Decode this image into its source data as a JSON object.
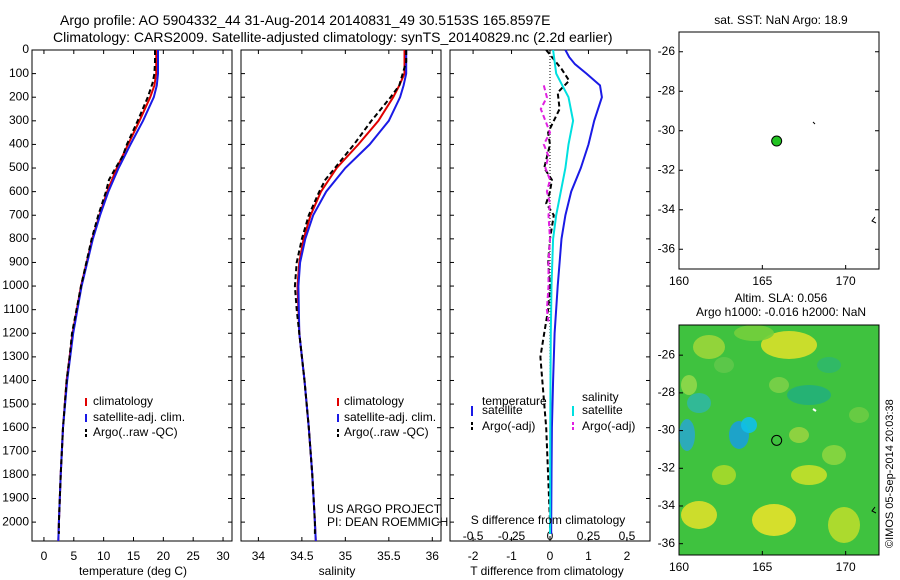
{
  "header": {
    "line1": "Argo profile: AO 5904332_44 31-Aug-2014 20140831_49 30.5153S 165.8597E",
    "line2": "Climatology: CARS2009. Satellite-adjusted climatology: synTS_20140829.nc (2.2d earlier)"
  },
  "sst_title": "sat. SST: NaN Argo: 18.9",
  "sla_title1": "Altim. SLA: 0.056",
  "sla_title2": "Argo h1000: -0.016 h2000: NaN",
  "side_label": "©IMOS 05-Sep-2014 20:03:38",
  "project_line1": "US ARGO PROJECT",
  "project_line2": "PI: DEAN ROEMMICH",
  "colors": {
    "climatology": "#e00000",
    "satellite": "#1a1ae6",
    "argo": "#000000",
    "sat_s": "#00e0e0",
    "argo_s": "#e020e0"
  },
  "chart_data": [
    {
      "type": "line",
      "xlabel": "temperature (deg C)",
      "ylabel": "",
      "xlim": [
        -2,
        31.5
      ],
      "ylim": [
        0,
        2080
      ],
      "xticks": [
        0,
        5,
        10,
        15,
        20,
        25,
        30
      ],
      "yticks": [
        0,
        100,
        200,
        300,
        400,
        500,
        600,
        700,
        800,
        900,
        1000,
        1100,
        1200,
        1300,
        1400,
        1500,
        1600,
        1700,
        1800,
        1900,
        2000
      ],
      "legend": [
        "climatology",
        "satellite-adj. clim.",
        "Argo(..raw -QC)"
      ],
      "legend_position": "lower-left",
      "series": [
        {
          "name": "climatology",
          "depth": [
            0,
            100,
            150,
            200,
            300,
            400,
            500,
            600,
            700,
            800,
            1000,
            1200,
            1400,
            1600,
            1800,
            2000,
            2080
          ],
          "values": [
            18.8,
            18.8,
            18.5,
            17.8,
            16.0,
            14.1,
            12.2,
            10.6,
            9.3,
            8.1,
            6.2,
            4.8,
            3.8,
            3.2,
            2.8,
            2.5,
            2.4
          ]
        },
        {
          "name": "satellite-adj. clim.",
          "depth": [
            0,
            100,
            150,
            200,
            300,
            400,
            500,
            600,
            700,
            800,
            1000,
            1200,
            1400,
            1600,
            1800,
            2000,
            2080
          ],
          "values": [
            19.1,
            19.1,
            18.9,
            18.4,
            16.6,
            14.5,
            12.5,
            10.8,
            9.4,
            8.2,
            6.3,
            4.9,
            3.9,
            3.2,
            2.8,
            2.5,
            2.4
          ]
        },
        {
          "name": "Argo(..raw -QC)",
          "depth": [
            0,
            50,
            100,
            140,
            200,
            300,
            400,
            450,
            500,
            550,
            600,
            700,
            800,
            1000,
            1200,
            1300,
            1400,
            1600,
            1800,
            2000,
            2050
          ],
          "values": [
            18.6,
            18.6,
            18.5,
            18.2,
            17.4,
            15.7,
            13.9,
            13.2,
            12.0,
            10.9,
            10.4,
            9.1,
            8.0,
            6.2,
            4.7,
            4.3,
            3.8,
            3.2,
            2.8,
            2.5,
            2.5
          ]
        }
      ]
    },
    {
      "type": "line",
      "xlabel": "salinity",
      "ylabel": "",
      "xlim": [
        33.8,
        36.1
      ],
      "ylim": [
        0,
        2080
      ],
      "xticks": [
        34,
        34.5,
        35,
        35.5,
        36
      ],
      "legend": [
        "climatology",
        "satellite-adj. clim.",
        "Argo(..raw -QC)"
      ],
      "legend_position": "lower-right",
      "series": [
        {
          "name": "climatology",
          "depth": [
            0,
            100,
            150,
            200,
            300,
            400,
            500,
            600,
            700,
            800,
            900,
            1000,
            1200,
            1400,
            1600,
            1800,
            2000,
            2080
          ],
          "values": [
            35.68,
            35.68,
            35.62,
            35.55,
            35.38,
            35.15,
            34.9,
            34.72,
            34.6,
            34.52,
            34.47,
            34.45,
            34.47,
            34.53,
            34.58,
            34.62,
            34.65,
            34.66
          ]
        },
        {
          "name": "satellite-adj. clim.",
          "depth": [
            0,
            100,
            150,
            200,
            300,
            400,
            500,
            600,
            700,
            800,
            900,
            1000,
            1200,
            1400,
            1600,
            1800,
            2000,
            2080
          ],
          "values": [
            35.7,
            35.7,
            35.67,
            35.63,
            35.5,
            35.28,
            35.0,
            34.78,
            34.63,
            34.54,
            34.48,
            34.46,
            34.47,
            34.53,
            34.58,
            34.62,
            34.65,
            34.66
          ]
        },
        {
          "name": "Argo(..raw -QC)",
          "depth": [
            0,
            50,
            100,
            150,
            200,
            300,
            400,
            500,
            550,
            600,
            700,
            800,
            900,
            1000,
            1100,
            1200,
            1400,
            1600,
            1800,
            2000,
            2050
          ],
          "values": [
            35.7,
            35.7,
            35.66,
            35.62,
            35.52,
            35.3,
            35.1,
            34.88,
            34.77,
            34.7,
            34.58,
            34.5,
            34.44,
            34.42,
            34.44,
            34.47,
            34.53,
            34.58,
            34.62,
            34.65,
            34.65
          ]
        }
      ]
    },
    {
      "type": "line",
      "xlabel": "T difference from climatology",
      "title": "S difference from climatology",
      "xlim": [
        -2.6,
        2.6
      ],
      "ylim": [
        0,
        2080
      ],
      "xticks": [
        -2,
        -1,
        0,
        1,
        2
      ],
      "xticks_S": [
        -0.5,
        -0.25,
        0,
        0.25,
        0.5
      ],
      "legend": [
        "temperature",
        "satellite",
        "Argo(-adj)",
        "salinity",
        "satellite",
        "Argo(-adj)"
      ],
      "series": [
        {
          "name": "satellite",
          "group": "temperature",
          "depth": [
            0,
            30,
            60,
            100,
            150,
            200,
            300,
            400,
            500,
            600,
            700,
            800,
            1000,
            1200,
            1400,
            1600,
            1800,
            2000,
            2050
          ],
          "values": [
            0.4,
            0.5,
            0.65,
            0.95,
            1.3,
            1.35,
            1.15,
            1.0,
            0.8,
            0.55,
            0.4,
            0.3,
            0.2,
            0.12,
            0.08,
            0.05,
            0.04,
            0.03,
            0.03
          ]
        },
        {
          "name": "Argo(-adj)",
          "group": "temperature",
          "depth": [
            0,
            40,
            80,
            130,
            180,
            250,
            300,
            350,
            400,
            500,
            550,
            600,
            650,
            700,
            800,
            900,
            1000,
            1100,
            1200,
            1300,
            1400,
            1600,
            1800,
            2000,
            2050
          ],
          "values": [
            -0.1,
            0.1,
            0.3,
            0.5,
            0.2,
            0.25,
            0.1,
            -0.05,
            0.0,
            -0.15,
            0.05,
            0.0,
            -0.1,
            0.1,
            0.0,
            -0.05,
            0.0,
            -0.05,
            -0.15,
            -0.25,
            -0.2,
            -0.1,
            -0.05,
            0.0,
            0.0
          ]
        },
        {
          "name": "satellite",
          "group": "salinity",
          "depth": [
            0,
            100,
            150,
            200,
            300,
            400,
            500,
            600,
            700,
            800,
            1000,
            1200,
            1400,
            1600,
            1800,
            2000,
            2050
          ],
          "values": [
            0.02,
            0.04,
            0.08,
            0.12,
            0.15,
            0.12,
            0.1,
            0.07,
            0.04,
            0.02,
            0.01,
            0.005,
            0.003,
            0.002,
            0.001,
            0.001,
            0.0
          ]
        },
        {
          "name": "Argo(-adj)",
          "group": "salinity",
          "depth": [
            150,
            200,
            250,
            300,
            350,
            400,
            450,
            500,
            550,
            600,
            650,
            700,
            800,
            900,
            1000,
            1100,
            1150
          ],
          "values": [
            -0.04,
            -0.02,
            -0.06,
            -0.03,
            0.0,
            -0.04,
            -0.01,
            -0.03,
            0.0,
            -0.02,
            0.0,
            -0.01,
            0.0,
            -0.01,
            -0.01,
            -0.02,
            -0.01
          ]
        }
      ]
    },
    {
      "type": "scatter",
      "title": "sat. SST: NaN Argo: 18.9",
      "xlim": [
        160,
        172
      ],
      "ylim": [
        -37,
        -25
      ],
      "xticks": [
        160,
        165,
        170
      ],
      "yticks": [
        -26,
        -28,
        -30,
        -32,
        -34,
        -36
      ],
      "points": [
        {
          "lon": 165.86,
          "lat": -30.52
        }
      ]
    },
    {
      "type": "heatmap",
      "title": "Altim. SLA: 0.056",
      "xlim": [
        160,
        172
      ],
      "ylim": [
        -36.6,
        -24.4
      ],
      "xticks": [
        160,
        165,
        170
      ],
      "yticks": [
        -26,
        -28,
        -30,
        -32,
        -34,
        -36
      ],
      "points": [
        {
          "lon": 165.86,
          "lat": -30.52
        }
      ]
    }
  ]
}
